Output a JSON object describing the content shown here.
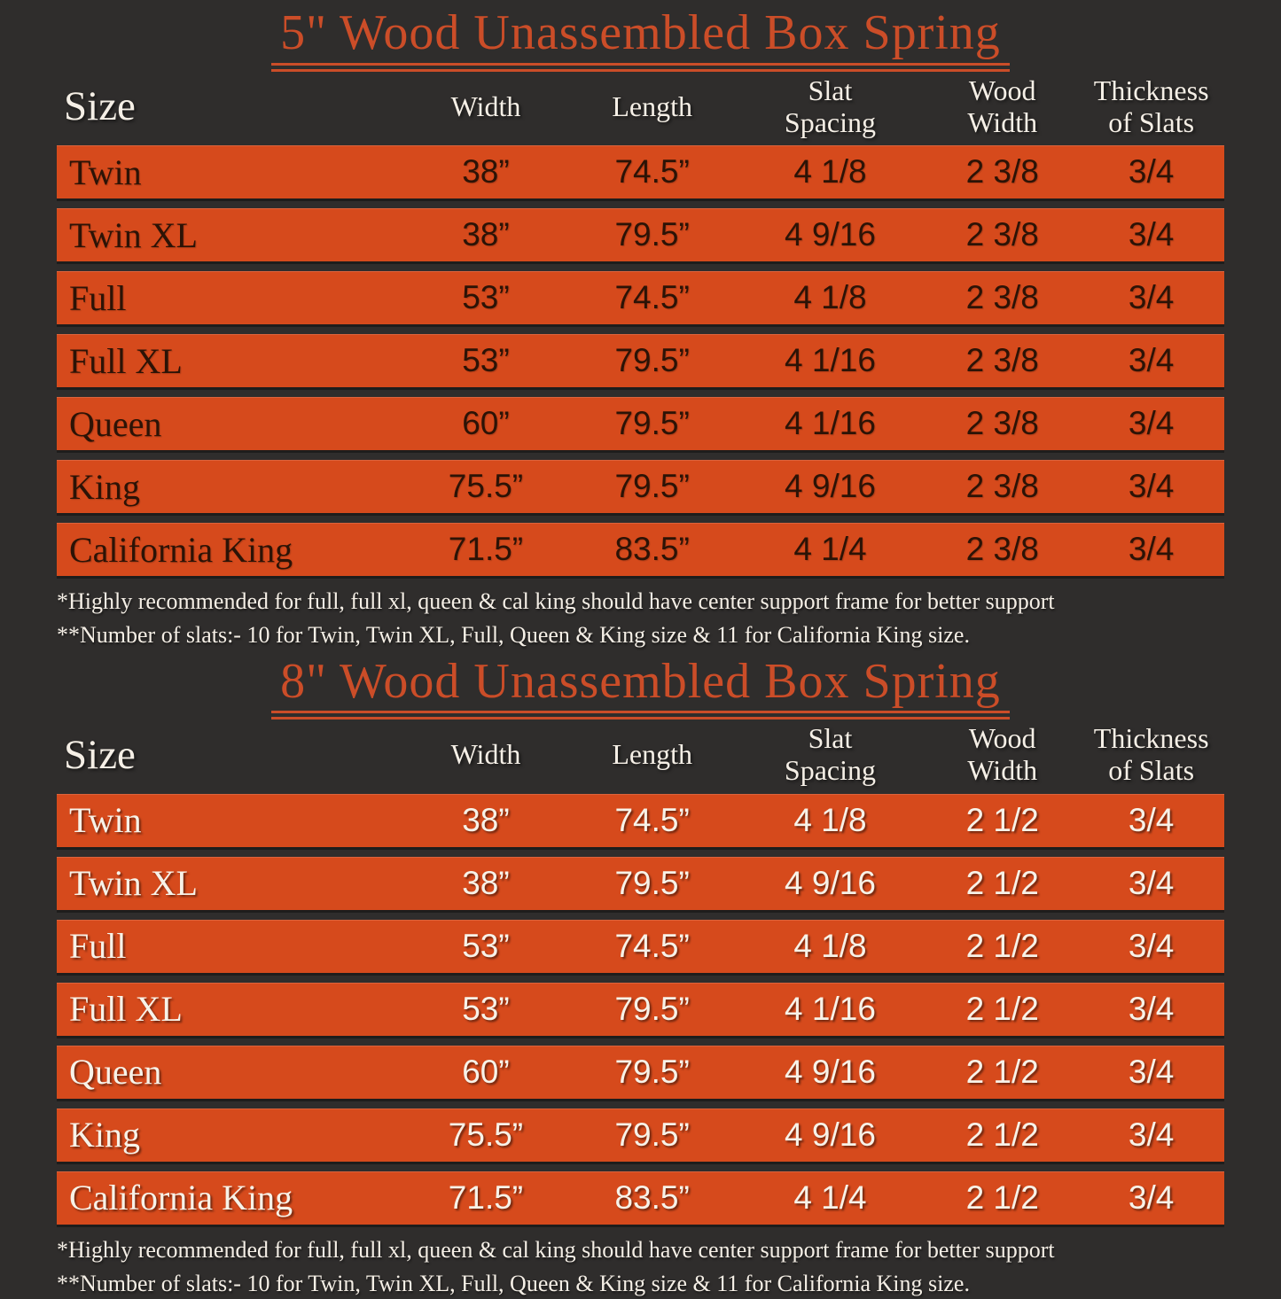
{
  "page": {
    "background_color": "#2F2D2C",
    "bar_color": "#D64A1C",
    "title_color": "#CB4D28",
    "dark_text_color": "#2C1306",
    "light_text_color": "#F5EFE6"
  },
  "columns": [
    {
      "label": "Size",
      "lines": [
        "Size"
      ]
    },
    {
      "label": "Width",
      "lines": [
        "Width"
      ]
    },
    {
      "label": "Length",
      "lines": [
        "Length"
      ]
    },
    {
      "label": "Slat Spacing",
      "lines": [
        "Slat",
        "Spacing"
      ]
    },
    {
      "label": "Wood Width",
      "lines": [
        "Wood",
        "Width"
      ]
    },
    {
      "label": "Thickness of Slats",
      "lines": [
        "Thickness",
        "of Slats"
      ]
    }
  ],
  "tables": [
    {
      "title": "5\" Wood Unassembled Box Spring",
      "rows": [
        {
          "size": "Twin",
          "width": "38”",
          "length": "74.5”",
          "slat_spacing": "4 1/8",
          "wood_width": "2 3/8",
          "thickness": "3/4"
        },
        {
          "size": "Twin XL",
          "width": "38”",
          "length": "79.5”",
          "slat_spacing": "4 9/16",
          "wood_width": "2 3/8",
          "thickness": "3/4"
        },
        {
          "size": "Full",
          "width": "53”",
          "length": "74.5”",
          "slat_spacing": "4 1/8",
          "wood_width": "2 3/8",
          "thickness": "3/4"
        },
        {
          "size": "Full XL",
          "width": "53”",
          "length": "79.5”",
          "slat_spacing": "4 1/16",
          "wood_width": "2 3/8",
          "thickness": "3/4"
        },
        {
          "size": "Queen",
          "width": "60”",
          "length": "79.5”",
          "slat_spacing": "4 1/16",
          "wood_width": "2 3/8",
          "thickness": "3/4"
        },
        {
          "size": "King",
          "width": "75.5”",
          "length": "79.5”",
          "slat_spacing": "4 9/16",
          "wood_width": "2 3/8",
          "thickness": "3/4"
        },
        {
          "size": "California King",
          "width": "71.5”",
          "length": "83.5”",
          "slat_spacing": "4 1/4",
          "wood_width": "2 3/8",
          "thickness": "3/4"
        }
      ],
      "footnotes": [
        "*Highly recommended for full, full xl, queen & cal king should have center support frame  for better support",
        "**Number of slats:- 10 for Twin, Twin XL, Full, Queen & King size & 11 for California King size."
      ]
    },
    {
      "title": "8\" Wood Unassembled Box Spring",
      "rows": [
        {
          "size": "Twin",
          "width": "38”",
          "length": "74.5”",
          "slat_spacing": "4 1/8",
          "wood_width": "2 1/2",
          "thickness": "3/4"
        },
        {
          "size": "Twin XL",
          "width": "38”",
          "length": "79.5”",
          "slat_spacing": "4 9/16",
          "wood_width": "2 1/2",
          "thickness": "3/4"
        },
        {
          "size": "Full",
          "width": "53”",
          "length": "74.5”",
          "slat_spacing": "4 1/8",
          "wood_width": "2 1/2",
          "thickness": "3/4"
        },
        {
          "size": "Full XL",
          "width": "53”",
          "length": "79.5”",
          "slat_spacing": "4 1/16",
          "wood_width": "2 1/2",
          "thickness": "3/4"
        },
        {
          "size": "Queen",
          "width": "60”",
          "length": "79.5”",
          "slat_spacing": "4 9/16",
          "wood_width": "2 1/2",
          "thickness": "3/4"
        },
        {
          "size": "King",
          "width": "75.5”",
          "length": "79.5”",
          "slat_spacing": "4 9/16",
          "wood_width": "2 1/2",
          "thickness": "3/4"
        },
        {
          "size": "California King",
          "width": "71.5”",
          "length": "83.5”",
          "slat_spacing": "4 1/4",
          "wood_width": "2 1/2",
          "thickness": "3/4"
        }
      ],
      "footnotes": [
        "*Highly recommended for full, full xl, queen & cal king should have center support frame  for better support",
        "**Number of slats:- 10 for Twin, Twin XL, Full, Queen & King size & 11 for California King size."
      ]
    }
  ]
}
